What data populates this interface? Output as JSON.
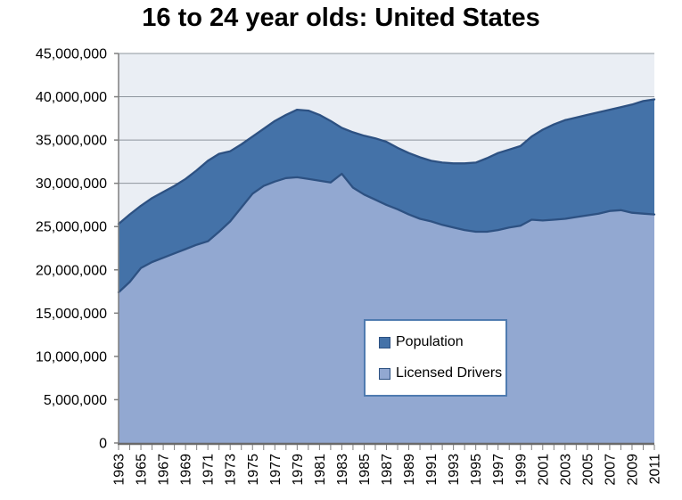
{
  "title": "16 to 24 year olds: United States",
  "chart_data": {
    "type": "area",
    "title": "16 to 24 year olds: United States",
    "xlabel": "",
    "ylabel": "",
    "grid": true,
    "legend_position": "inside lower-center, boxed",
    "ylim": [
      0,
      45000000
    ],
    "ytick_step": 5000000,
    "ytick_labels": [
      "0",
      "5,000,000",
      "10,000,000",
      "15,000,000",
      "20,000,000",
      "25,000,000",
      "30,000,000",
      "35,000,000",
      "40,000,000",
      "45,000,000"
    ],
    "x": [
      1963,
      1964,
      1965,
      1966,
      1967,
      1968,
      1969,
      1970,
      1971,
      1972,
      1973,
      1974,
      1975,
      1976,
      1977,
      1978,
      1979,
      1980,
      1981,
      1982,
      1983,
      1984,
      1985,
      1986,
      1987,
      1988,
      1989,
      1990,
      1991,
      1992,
      1993,
      1994,
      1995,
      1996,
      1997,
      1998,
      1999,
      2000,
      2001,
      2002,
      2003,
      2004,
      2005,
      2006,
      2007,
      2008,
      2009,
      2010,
      2011
    ],
    "xtick_labels": [
      "1963",
      "1965",
      "1967",
      "1969",
      "1971",
      "1973",
      "1975",
      "1977",
      "1979",
      "1981",
      "1983",
      "1985",
      "1987",
      "1989",
      "1991",
      "1993",
      "1995",
      "1997",
      "1999",
      "2001",
      "2003",
      "2005",
      "2007",
      "2009",
      "2011"
    ],
    "series": [
      {
        "name": "Population",
        "fill": "#4472a8",
        "stroke": "#2d5182",
        "values": [
          25300000,
          26400000,
          27400000,
          28300000,
          29000000,
          29700000,
          30500000,
          31500000,
          32600000,
          33400000,
          33700000,
          34500000,
          35400000,
          36300000,
          37200000,
          37900000,
          38500000,
          38400000,
          37900000,
          37200000,
          36400000,
          35900000,
          35500000,
          35200000,
          34800000,
          34100000,
          33500000,
          33000000,
          32600000,
          32400000,
          32300000,
          32300000,
          32400000,
          32900000,
          33500000,
          33900000,
          34300000,
          35400000,
          36200000,
          36800000,
          37300000,
          37600000,
          37900000,
          38200000,
          38500000,
          38800000,
          39100000,
          39500000,
          39700000
        ]
      },
      {
        "name": "Licensed Drivers",
        "fill": "#92a8d1",
        "stroke": "#2d5182",
        "values": [
          17400000,
          18600000,
          20200000,
          20900000,
          21400000,
          21900000,
          22400000,
          22900000,
          23300000,
          24400000,
          25600000,
          27200000,
          28800000,
          29700000,
          30200000,
          30600000,
          30700000,
          30500000,
          30300000,
          30100000,
          31100000,
          29500000,
          28700000,
          28100000,
          27500000,
          27000000,
          26400000,
          25900000,
          25600000,
          25200000,
          24900000,
          24600000,
          24400000,
          24400000,
          24600000,
          24900000,
          25100000,
          25800000,
          25700000,
          25800000,
          25900000,
          26100000,
          26300000,
          26500000,
          26800000,
          26900000,
          26600000,
          26500000,
          26400000
        ]
      }
    ]
  },
  "colors": {
    "page_background": "#ffffff",
    "plot_background": "#eaeef4",
    "gridline": "#8e959d",
    "axis": "#7f7f7f",
    "bottom_axis": "#6a6a6a",
    "legend_border": "#4f7bb0",
    "text": "#000000"
  },
  "legend": {
    "items": [
      "Population",
      "Licensed Drivers"
    ]
  }
}
